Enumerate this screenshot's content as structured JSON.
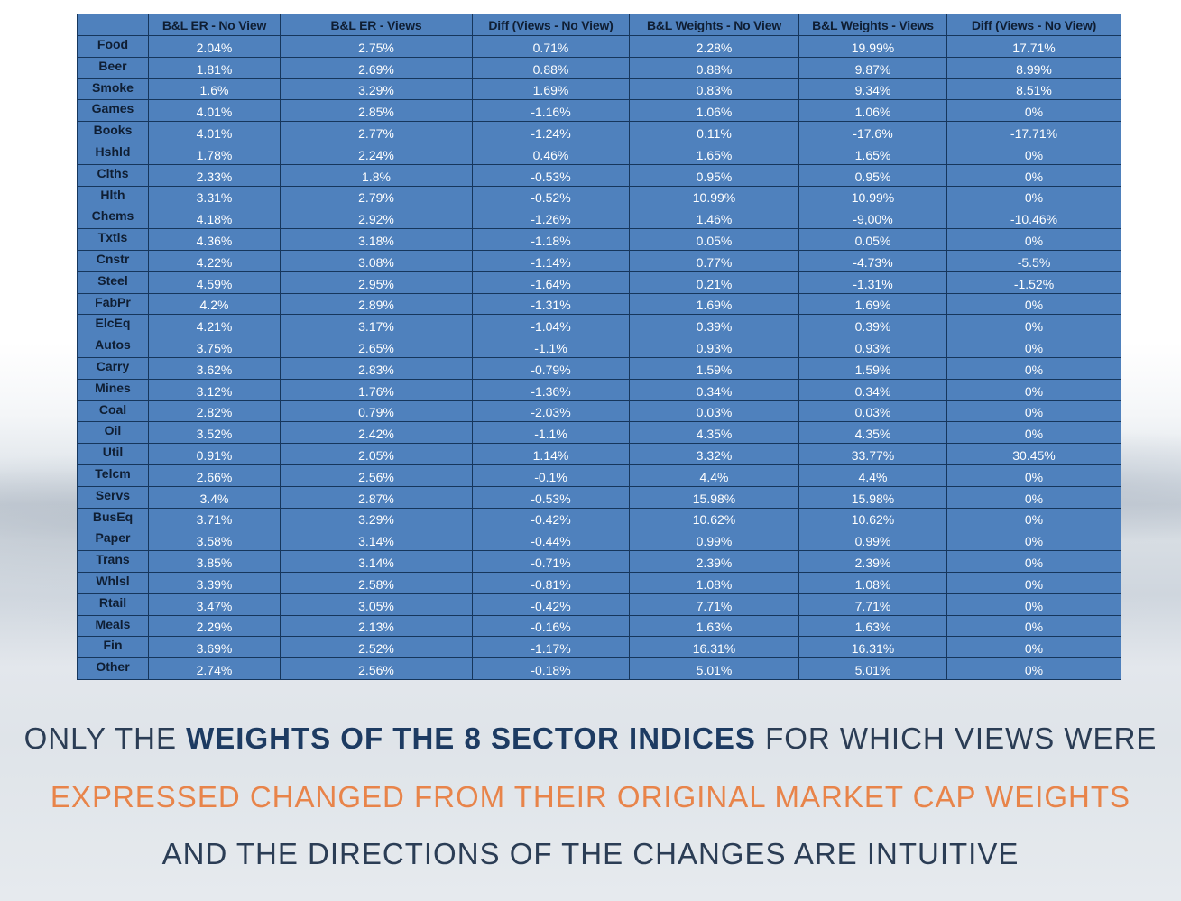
{
  "table": {
    "columns": [
      "",
      "B&L ER - No View",
      "B&L ER - Views",
      "Diff (Views - No View)",
      "B&L Weights - No View",
      "B&L Weights - Views",
      "Diff (Views - No View)"
    ],
    "rows": [
      [
        "Food",
        "2.04%",
        "2.75%",
        "0.71%",
        "2.28%",
        "19.99%",
        "17.71%"
      ],
      [
        "Beer",
        "1.81%",
        "2.69%",
        "0.88%",
        "0.88%",
        "9.87%",
        "8.99%"
      ],
      [
        "Smoke",
        "1.6%",
        "3.29%",
        "1.69%",
        "0.83%",
        "9.34%",
        "8.51%"
      ],
      [
        "Games",
        "4.01%",
        "2.85%",
        "-1.16%",
        "1.06%",
        "1.06%",
        "0%"
      ],
      [
        "Books",
        "4.01%",
        "2.77%",
        "-1.24%",
        "0.11%",
        "-17.6%",
        "-17.71%"
      ],
      [
        "Hshld",
        "1.78%",
        "2.24%",
        "0.46%",
        "1.65%",
        "1.65%",
        "0%"
      ],
      [
        "Clths",
        "2.33%",
        "1.8%",
        "-0.53%",
        "0.95%",
        "0.95%",
        "0%"
      ],
      [
        "Hlth",
        "3.31%",
        "2.79%",
        "-0.52%",
        "10.99%",
        "10.99%",
        "0%"
      ],
      [
        "Chems",
        "4.18%",
        "2.92%",
        "-1.26%",
        "1.46%",
        "-9,00%",
        "-10.46%"
      ],
      [
        "Txtls",
        "4.36%",
        "3.18%",
        "-1.18%",
        "0.05%",
        "0.05%",
        "0%"
      ],
      [
        "Cnstr",
        "4.22%",
        "3.08%",
        "-1.14%",
        "0.77%",
        "-4.73%",
        "-5.5%"
      ],
      [
        "Steel",
        "4.59%",
        "2.95%",
        "-1.64%",
        "0.21%",
        "-1.31%",
        "-1.52%"
      ],
      [
        "FabPr",
        "4.2%",
        "2.89%",
        "-1.31%",
        "1.69%",
        "1.69%",
        "0%"
      ],
      [
        "ElcEq",
        "4.21%",
        "3.17%",
        "-1.04%",
        "0.39%",
        "0.39%",
        "0%"
      ],
      [
        "Autos",
        "3.75%",
        "2.65%",
        "-1.1%",
        "0.93%",
        "0.93%",
        "0%"
      ],
      [
        "Carry",
        "3.62%",
        "2.83%",
        "-0.79%",
        "1.59%",
        "1.59%",
        "0%"
      ],
      [
        "Mines",
        "3.12%",
        "1.76%",
        "-1.36%",
        "0.34%",
        "0.34%",
        "0%"
      ],
      [
        "Coal",
        "2.82%",
        "0.79%",
        "-2.03%",
        "0.03%",
        "0.03%",
        "0%"
      ],
      [
        "Oil",
        "3.52%",
        "2.42%",
        "-1.1%",
        "4.35%",
        "4.35%",
        "0%"
      ],
      [
        "Util",
        "0.91%",
        "2.05%",
        "1.14%",
        "3.32%",
        "33.77%",
        "30.45%"
      ],
      [
        "Telcm",
        "2.66%",
        "2.56%",
        "-0.1%",
        "4.4%",
        "4.4%",
        "0%"
      ],
      [
        "Servs",
        "3.4%",
        "2.87%",
        "-0.53%",
        "15.98%",
        "15.98%",
        "0%"
      ],
      [
        "BusEq",
        "3.71%",
        "3.29%",
        "-0.42%",
        "10.62%",
        "10.62%",
        "0%"
      ],
      [
        "Paper",
        "3.58%",
        "3.14%",
        "-0.44%",
        "0.99%",
        "0.99%",
        "0%"
      ],
      [
        "Trans",
        "3.85%",
        "3.14%",
        "-0.71%",
        "2.39%",
        "2.39%",
        "0%"
      ],
      [
        "Whlsl",
        "3.39%",
        "2.58%",
        "-0.81%",
        "1.08%",
        "1.08%",
        "0%"
      ],
      [
        "Rtail",
        "3.47%",
        "3.05%",
        "-0.42%",
        "7.71%",
        "7.71%",
        "0%"
      ],
      [
        "Meals",
        "2.29%",
        "2.13%",
        "-0.16%",
        "1.63%",
        "1.63%",
        "0%"
      ],
      [
        "Fin",
        "3.69%",
        "2.52%",
        "-1.17%",
        "16.31%",
        "16.31%",
        "0%"
      ],
      [
        "Other",
        "2.74%",
        "2.56%",
        "-0.18%",
        "5.01%",
        "5.01%",
        "0%"
      ]
    ]
  },
  "caption": {
    "line1_pre": "ONLY THE ",
    "line1_bold": "WEIGHTS OF THE 8 SECTOR INDICES",
    "line1_post": " FOR WHICH VIEWS WERE",
    "line2": "EXPRESSED CHANGED FROM THEIR ORIGINAL MARKET CAP WEIGHTS",
    "line3": "AND THE DIRECTIONS OF THE CHANGES ARE INTUITIVE"
  },
  "colors": {
    "table_fill": "#4f81bd",
    "grid_line": "#16365c",
    "caption_dark": "#2b3d55",
    "caption_bold": "#1d3b62",
    "caption_orange": "#e8844a"
  }
}
